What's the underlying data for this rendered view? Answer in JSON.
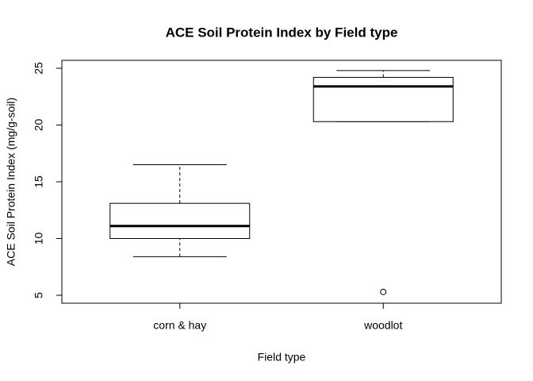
{
  "chart_data": {
    "type": "box",
    "title": "ACE Soil Protein Index by Field type",
    "xlabel": "Field type",
    "ylabel": "ACE Soil Protein Index (mg/g-soil)",
    "categories": [
      "corn & hay",
      "woodlot"
    ],
    "stats": [
      [
        8.4,
        10.0,
        11.1,
        13.1,
        16.5
      ],
      [
        20.3,
        20.3,
        23.4,
        24.2,
        24.8
      ]
    ],
    "outliers": [
      [],
      [
        5.3
      ]
    ],
    "color": "#000000",
    "ylim": [
      4.3,
      25.7
    ],
    "yticks": [
      5,
      10,
      15,
      20,
      25
    ]
  }
}
